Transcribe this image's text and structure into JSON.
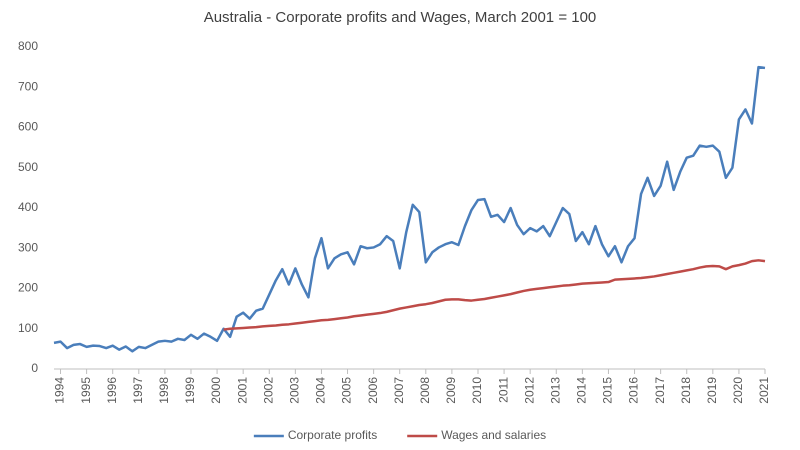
{
  "chart_data": {
    "type": "line",
    "title": "Australia - Corporate profits and Wages, March 2001 = 100",
    "x": [
      1993.75,
      1994,
      1994.25,
      1994.5,
      1994.75,
      1995,
      1995.25,
      1995.5,
      1995.75,
      1996,
      1996.25,
      1996.5,
      1996.75,
      1997,
      1997.25,
      1997.5,
      1997.75,
      1998,
      1998.25,
      1998.5,
      1998.75,
      1999,
      1999.25,
      1999.5,
      1999.75,
      2000,
      2000.25,
      2000.5,
      2000.75,
      2001,
      2001.25,
      2001.5,
      2001.75,
      2002,
      2002.25,
      2002.5,
      2002.75,
      2003,
      2003.25,
      2003.5,
      2003.75,
      2004,
      2004.25,
      2004.5,
      2004.75,
      2005,
      2005.25,
      2005.5,
      2005.75,
      2006,
      2006.25,
      2006.5,
      2006.75,
      2007,
      2007.25,
      2007.5,
      2007.75,
      2008,
      2008.25,
      2008.5,
      2008.75,
      2009,
      2009.25,
      2009.5,
      2009.75,
      2010,
      2010.25,
      2010.5,
      2010.75,
      2011,
      2011.25,
      2011.5,
      2011.75,
      2012,
      2012.25,
      2012.5,
      2012.75,
      2013,
      2013.25,
      2013.5,
      2013.75,
      2014,
      2014.25,
      2014.5,
      2014.75,
      2015,
      2015.25,
      2015.5,
      2015.75,
      2016,
      2016.25,
      2016.5,
      2016.75,
      2017,
      2017.25,
      2017.5,
      2017.75,
      2018,
      2018.25,
      2018.5,
      2018.75,
      2019,
      2019.25,
      2019.5,
      2019.75,
      2020,
      2020.25,
      2020.5,
      2020.75,
      2021
    ],
    "series": [
      {
        "name": "Corporate profits",
        "color": "#4a7ebb",
        "values": [
          65,
          68,
          52,
          60,
          62,
          55,
          58,
          57,
          52,
          58,
          48,
          56,
          44,
          55,
          52,
          60,
          68,
          70,
          68,
          75,
          72,
          85,
          75,
          88,
          80,
          70,
          100,
          80,
          130,
          140,
          125,
          145,
          150,
          185,
          220,
          248,
          210,
          250,
          210,
          178,
          275,
          325,
          250,
          275,
          285,
          290,
          260,
          305,
          300,
          302,
          310,
          330,
          318,
          250,
          340,
          408,
          390,
          265,
          290,
          302,
          310,
          315,
          308,
          355,
          395,
          420,
          422,
          378,
          383,
          365,
          400,
          358,
          335,
          350,
          342,
          355,
          330,
          365,
          400,
          385,
          318,
          340,
          310,
          355,
          310,
          280,
          305,
          265,
          305,
          325,
          435,
          475,
          430,
          455,
          515,
          445,
          490,
          525,
          530,
          555,
          552,
          555,
          540,
          475,
          500,
          620,
          645,
          610,
          750,
          748
        ]
      },
      {
        "name": "Wages and salaries",
        "color": "#be4b48",
        "values": [
          null,
          null,
          null,
          null,
          null,
          null,
          null,
          null,
          null,
          null,
          null,
          null,
          null,
          null,
          null,
          null,
          null,
          null,
          null,
          null,
          null,
          null,
          null,
          null,
          null,
          null,
          98,
          100,
          101,
          102,
          103,
          104,
          106,
          107,
          108,
          110,
          111,
          113,
          115,
          117,
          119,
          121,
          122,
          124,
          126,
          128,
          131,
          133,
          135,
          137,
          139,
          142,
          146,
          150,
          153,
          156,
          159,
          161,
          164,
          168,
          172,
          173,
          173,
          171,
          170,
          172,
          174,
          177,
          180,
          183,
          186,
          190,
          194,
          197,
          199,
          201,
          203,
          205,
          207,
          208,
          210,
          212,
          213,
          214,
          215,
          216,
          222,
          223,
          224,
          225,
          226,
          228,
          230,
          233,
          236,
          239,
          242,
          245,
          248,
          252,
          255,
          256,
          255,
          248,
          255,
          258,
          262,
          268,
          270,
          268
        ]
      }
    ],
    "xlim": [
      1993.75,
      2021
    ],
    "xticks": [
      1994,
      1995,
      1996,
      1997,
      1998,
      1999,
      2000,
      2001,
      2002,
      2003,
      2004,
      2005,
      2006,
      2007,
      2008,
      2009,
      2010,
      2011,
      2012,
      2013,
      2014,
      2015,
      2016,
      2017,
      2018,
      2019,
      2020,
      2021
    ],
    "ylim": [
      0,
      800
    ],
    "yticks": [
      0,
      100,
      200,
      300,
      400,
      500,
      600,
      700,
      800
    ],
    "legend": "bottom"
  }
}
